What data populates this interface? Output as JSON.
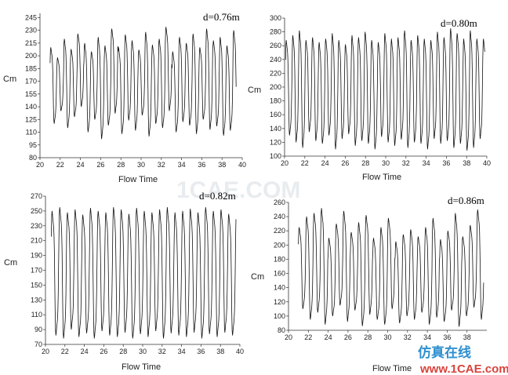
{
  "watermark": {
    "center_text": "1CAE.COM",
    "logo_cn": "仿真在线",
    "logo_en": "www.1CAE.com"
  },
  "chart_data": [
    {
      "type": "line",
      "annotation": "d=0.76m",
      "xlabel": "Flow Time",
      "ylabel": "Cm",
      "xlim": [
        20,
        40
      ],
      "ylim": [
        80,
        250
      ],
      "xticks": [
        "20",
        "22",
        "24",
        "26",
        "28",
        "30",
        "32",
        "34",
        "36",
        "38",
        "40"
      ],
      "yticks": [
        "80",
        "95",
        "110",
        "125",
        "140",
        "155",
        "170",
        "185",
        "200",
        "215",
        "230",
        "245"
      ],
      "grid": false,
      "series": [
        {
          "x_range": [
            21.0,
            39.4
          ],
          "period": 0.67,
          "peaks": [
            210,
            198,
            220,
            208,
            226,
            215,
            205,
            222,
            212,
            232,
            210,
            225,
            218,
            207,
            228,
            213,
            220,
            234,
            205,
            222,
            215,
            226,
            210,
            232,
            218,
            222,
            212,
            230
          ],
          "troughs": [
            120,
            135,
            115,
            128,
            140,
            110,
            125,
            102,
            118,
            132,
            108,
            124,
            112,
            130,
            105,
            120,
            115,
            135,
            110,
            122,
            118,
            108,
            125,
            113,
            117,
            106,
            112,
            110
          ]
        }
      ]
    },
    {
      "type": "line",
      "annotation": "d=0.80m",
      "xlabel": "Flow Time",
      "ylabel": "Cm",
      "xlim": [
        20,
        40
      ],
      "ylim": [
        100,
        300
      ],
      "xticks": [
        "20",
        "22",
        "24",
        "26",
        "28",
        "30",
        "32",
        "34",
        "36",
        "38",
        "40"
      ],
      "yticks": [
        "100",
        "120",
        "140",
        "160",
        "180",
        "200",
        "220",
        "240",
        "260",
        "280",
        "300"
      ],
      "grid": false,
      "series": [
        {
          "x_range": [
            20.1,
            39.8
          ],
          "period": 0.65,
          "peaks": [
            268,
            275,
            282,
            268,
            272,
            265,
            270,
            278,
            268,
            262,
            275,
            272,
            280,
            268,
            265,
            278,
            270,
            272,
            282,
            268,
            275,
            270,
            268,
            280,
            272,
            285,
            278,
            270,
            282,
            270
          ],
          "troughs": [
            130,
            120,
            112,
            135,
            122,
            118,
            130,
            110,
            125,
            132,
            115,
            122,
            118,
            110,
            128,
            120,
            115,
            124,
            112,
            120,
            118,
            110,
            125,
            118,
            122,
            112,
            118,
            108,
            112,
            125
          ]
        }
      ]
    },
    {
      "type": "line",
      "annotation": "d=0.82m",
      "xlabel": "Flow Time",
      "ylabel": "Cm",
      "xlim": [
        20,
        40
      ],
      "ylim": [
        70,
        270
      ],
      "xticks": [
        "20",
        "22",
        "24",
        "26",
        "28",
        "30",
        "32",
        "34",
        "36",
        "38",
        "40"
      ],
      "yticks": [
        "70",
        "90",
        "110",
        "130",
        "150",
        "170",
        "190",
        "210",
        "230",
        "250",
        "270"
      ],
      "grid": false,
      "series": [
        {
          "x_range": [
            20.6,
            39.6
          ],
          "period": 0.79,
          "peaks": [
            250,
            255,
            248,
            252,
            245,
            254,
            250,
            248,
            255,
            252,
            246,
            254,
            250,
            248,
            252,
            255,
            248,
            250,
            253,
            248,
            255,
            250,
            252,
            246
          ],
          "troughs": [
            82,
            78,
            90,
            80,
            85,
            78,
            88,
            82,
            80,
            86,
            78,
            84,
            80,
            88,
            78,
            85,
            82,
            80,
            86,
            78,
            84,
            80,
            86,
            82
          ]
        }
      ]
    },
    {
      "type": "line",
      "annotation": "d=0.86m",
      "xlabel": "Flow Time",
      "ylabel": "Cm",
      "xlim": [
        20,
        40
      ],
      "ylim": [
        80,
        260
      ],
      "xticks": [
        "20",
        "22",
        "24",
        "26",
        "28",
        "30",
        "32",
        "34",
        "36",
        "38"
      ],
      "yticks": [
        "80",
        "100",
        "120",
        "140",
        "160",
        "180",
        "200",
        "220",
        "240",
        "260"
      ],
      "grid": false,
      "series": [
        {
          "x_range": [
            21.0,
            39.7
          ],
          "period": 0.75,
          "peaks": [
            225,
            240,
            245,
            252,
            210,
            230,
            248,
            218,
            232,
            242,
            210,
            225,
            238,
            205,
            215,
            222,
            212,
            225,
            238,
            208,
            220,
            245,
            212,
            228,
            250,
            218,
            240
          ],
          "troughs": [
            110,
            95,
            105,
            88,
            100,
            115,
            92,
            108,
            86,
            102,
            95,
            88,
            110,
            90,
            100,
            95,
            105,
            88,
            98,
            92,
            108,
            85,
            100,
            112,
            95,
            90,
            118
          ]
        }
      ]
    }
  ]
}
